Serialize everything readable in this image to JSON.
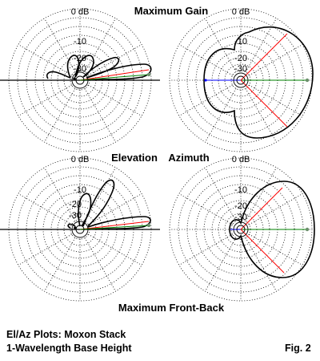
{
  "headers": {
    "top": "Maximum Gain",
    "middle_left": "Elevation",
    "middle_right": "Azimuth",
    "bottom": "Maximum Front-Back"
  },
  "ring_labels": [
    "0 dB",
    "-10",
    "-20",
    "-30"
  ],
  "caption": {
    "line1": "El/Az Plots:  Moxon Stack",
    "line2": "1-Wavelength Base Height",
    "fig": "Fig. 2"
  },
  "colors": {
    "red": "#ff0000",
    "green": "#008000",
    "blue": "#0000ff",
    "grid": "#000000"
  }
}
